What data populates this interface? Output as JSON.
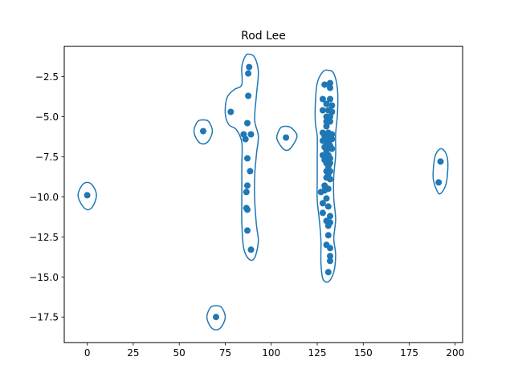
{
  "chart_data": {
    "type": "scatter",
    "title": "Rod Lee",
    "xlabel": "",
    "ylabel": "",
    "xlim": [
      -12.5,
      204
    ],
    "ylim": [
      -19.1,
      -0.6
    ],
    "xticks": [
      0,
      25,
      50,
      75,
      100,
      125,
      150,
      175,
      200
    ],
    "xtick_labels": [
      "0",
      "25",
      "50",
      "75",
      "100",
      "125",
      "150",
      "175",
      "200"
    ],
    "yticks": [
      -2.5,
      -5.0,
      -7.5,
      -10.0,
      -12.5,
      -15.0,
      -17.5
    ],
    "ytick_labels": [
      "−2.5",
      "−5.0",
      "−7.5",
      "−10.0",
      "−12.5",
      "−15.0",
      "−17.5"
    ],
    "grid": false,
    "point_color": "#1f77b4",
    "contour_color": "#1f77b4",
    "points": [
      [
        0,
        -9.9
      ],
      [
        63,
        -5.9
      ],
      [
        70,
        -17.5
      ],
      [
        108,
        -6.3
      ],
      [
        192,
        -7.8
      ],
      [
        191,
        -9.1
      ],
      [
        78,
        -4.7
      ],
      [
        88,
        -1.9
      ],
      [
        87.5,
        -2.3
      ],
      [
        87.5,
        -3.7
      ],
      [
        87,
        -5.4
      ],
      [
        85,
        -6.1
      ],
      [
        86,
        -6.4
      ],
      [
        89,
        -6.1
      ],
      [
        87,
        -7.6
      ],
      [
        88.5,
        -8.4
      ],
      [
        87,
        -9.3
      ],
      [
        86.5,
        -9.7
      ],
      [
        86.5,
        -10.7
      ],
      [
        87,
        -10.8
      ],
      [
        87,
        -12.1
      ],
      [
        89,
        -13.3
      ],
      [
        129,
        -3.0
      ],
      [
        132,
        -2.9
      ],
      [
        132,
        -3.2
      ],
      [
        128,
        -3.9
      ],
      [
        132,
        -3.9
      ],
      [
        130,
        -4.2
      ],
      [
        133,
        -4.3
      ],
      [
        128,
        -4.6
      ],
      [
        131,
        -4.6
      ],
      [
        133,
        -4.7
      ],
      [
        130,
        -5.0
      ],
      [
        132,
        -5.0
      ],
      [
        130,
        -5.3
      ],
      [
        132,
        -5.3
      ],
      [
        130,
        -5.6
      ],
      [
        128,
        -6.0
      ],
      [
        131,
        -6.0
      ],
      [
        133,
        -6.1
      ],
      [
        129,
        -6.2
      ],
      [
        131,
        -6.3
      ],
      [
        133,
        -6.4
      ],
      [
        128,
        -6.5
      ],
      [
        130,
        -6.6
      ],
      [
        131,
        -6.6
      ],
      [
        132,
        -6.8
      ],
      [
        129,
        -6.9
      ],
      [
        133,
        -7.0
      ],
      [
        130,
        -7.1
      ],
      [
        128,
        -7.4
      ],
      [
        131,
        -7.4
      ],
      [
        132,
        -7.6
      ],
      [
        129,
        -7.7
      ],
      [
        130,
        -7.9
      ],
      [
        132,
        -7.9
      ],
      [
        131,
        -8.1
      ],
      [
        130,
        -8.4
      ],
      [
        132,
        -8.4
      ],
      [
        131,
        -8.6
      ],
      [
        130,
        -8.8
      ],
      [
        132,
        -8.9
      ],
      [
        129,
        -9.3
      ],
      [
        131,
        -9.5
      ],
      [
        127,
        -9.7
      ],
      [
        129,
        -9.6
      ],
      [
        130,
        -10.1
      ],
      [
        128,
        -10.4
      ],
      [
        131,
        -10.6
      ],
      [
        128,
        -11.0
      ],
      [
        132,
        -11.2
      ],
      [
        130,
        -11.5
      ],
      [
        132,
        -11.6
      ],
      [
        131,
        -11.8
      ],
      [
        131,
        -12.4
      ],
      [
        130,
        -13.0
      ],
      [
        132,
        -13.2
      ],
      [
        132,
        -13.7
      ],
      [
        132,
        -14.0
      ],
      [
        131,
        -14.7
      ]
    ],
    "contours": [
      [
        [
          0,
          -9.1
        ],
        [
          3,
          -9.3
        ],
        [
          5,
          -9.9
        ],
        [
          3,
          -10.6
        ],
        [
          0,
          -10.8
        ],
        [
          -3,
          -10.5
        ],
        [
          -5,
          -9.9
        ],
        [
          -3,
          -9.3
        ]
      ],
      [
        [
          63,
          -5.2
        ],
        [
          66,
          -5.3
        ],
        [
          68,
          -5.9
        ],
        [
          66,
          -6.5
        ],
        [
          63,
          -6.7
        ],
        [
          60,
          -6.5
        ],
        [
          58,
          -5.9
        ],
        [
          60,
          -5.3
        ]
      ],
      [
        [
          70,
          -16.8
        ],
        [
          73,
          -16.9
        ],
        [
          75,
          -17.5
        ],
        [
          73,
          -18.1
        ],
        [
          70,
          -18.3
        ],
        [
          67,
          -18.1
        ],
        [
          65,
          -17.5
        ],
        [
          67,
          -16.9
        ]
      ],
      [
        [
          108,
          -5.6
        ],
        [
          111,
          -5.7
        ],
        [
          114,
          -6.2
        ],
        [
          111,
          -6.9
        ],
        [
          108,
          -7.1
        ],
        [
          105,
          -6.8
        ],
        [
          103,
          -6.3
        ],
        [
          105,
          -5.7
        ]
      ],
      [
        [
          192,
          -7.0
        ],
        [
          195,
          -7.3
        ],
        [
          196,
          -8.0
        ],
        [
          195,
          -9.2
        ],
        [
          192,
          -9.8
        ],
        [
          190,
          -9.6
        ],
        [
          188,
          -8.8
        ],
        [
          189,
          -7.5
        ]
      ],
      [
        [
          88,
          -1.1
        ],
        [
          91,
          -1.3
        ],
        [
          93,
          -2.2
        ],
        [
          92,
          -3.6
        ],
        [
          91,
          -5.2
        ],
        [
          93,
          -6.2
        ],
        [
          92,
          -7.3
        ],
        [
          91,
          -8.7
        ],
        [
          91,
          -10.2
        ],
        [
          92,
          -11.8
        ],
        [
          93,
          -12.8
        ],
        [
          91,
          -13.8
        ],
        [
          88,
          -13.9
        ],
        [
          85,
          -13.2
        ],
        [
          84,
          -11.6
        ],
        [
          84,
          -10.0
        ],
        [
          84,
          -8.1
        ],
        [
          84,
          -6.6
        ],
        [
          81,
          -5.8
        ],
        [
          77,
          -5.5
        ],
        [
          75,
          -4.8
        ],
        [
          76,
          -3.8
        ],
        [
          80,
          -3.3
        ],
        [
          84,
          -3.0
        ],
        [
          84,
          -1.9
        ],
        [
          86,
          -1.2
        ]
      ],
      [
        [
          131,
          -2.1
        ],
        [
          134,
          -2.3
        ],
        [
          136,
          -3.3
        ],
        [
          136,
          -4.8
        ],
        [
          135,
          -6.1
        ],
        [
          135,
          -7.4
        ],
        [
          134,
          -8.7
        ],
        [
          134,
          -10.1
        ],
        [
          135,
          -11.4
        ],
        [
          134,
          -12.6
        ],
        [
          135,
          -13.6
        ],
        [
          134,
          -14.7
        ],
        [
          131,
          -15.3
        ],
        [
          128,
          -15.1
        ],
        [
          127,
          -14.1
        ],
        [
          127,
          -12.7
        ],
        [
          126,
          -11.3
        ],
        [
          125,
          -10.2
        ],
        [
          125,
          -8.8
        ],
        [
          125,
          -7.5
        ],
        [
          125,
          -6.2
        ],
        [
          124,
          -5.4
        ],
        [
          124,
          -4.1
        ],
        [
          125,
          -2.9
        ],
        [
          128,
          -2.2
        ]
      ]
    ]
  }
}
